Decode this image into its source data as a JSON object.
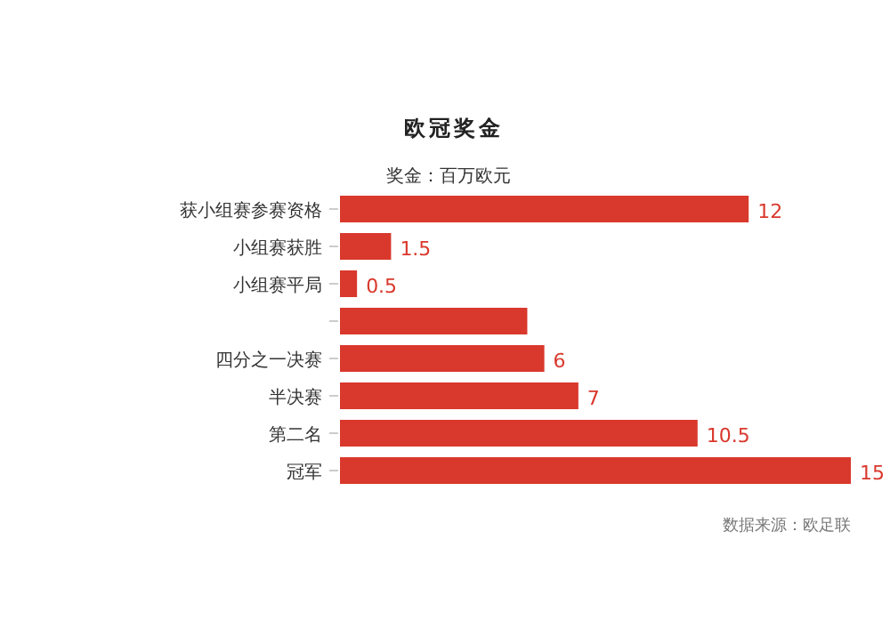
{
  "chart_data": {
    "type": "bar",
    "orientation": "horizontal",
    "title": "欧冠奖金",
    "subtitle": "奖金：百万欧元",
    "categories": [
      "获小组赛参赛资格",
      "小组赛获胜",
      "小组赛平局",
      null,
      "四分之一决赛",
      "半决赛",
      "第二名",
      "冠军"
    ],
    "values": [
      12,
      1.5,
      0.5,
      5.5,
      6,
      7,
      10.5,
      15
    ],
    "value_labels": [
      "12",
      "1.5",
      "0.5",
      null,
      "6",
      "7",
      "10.5",
      "15"
    ],
    "color": "#d9382c",
    "annotations": [
      "数据来源：欧足联"
    ]
  }
}
